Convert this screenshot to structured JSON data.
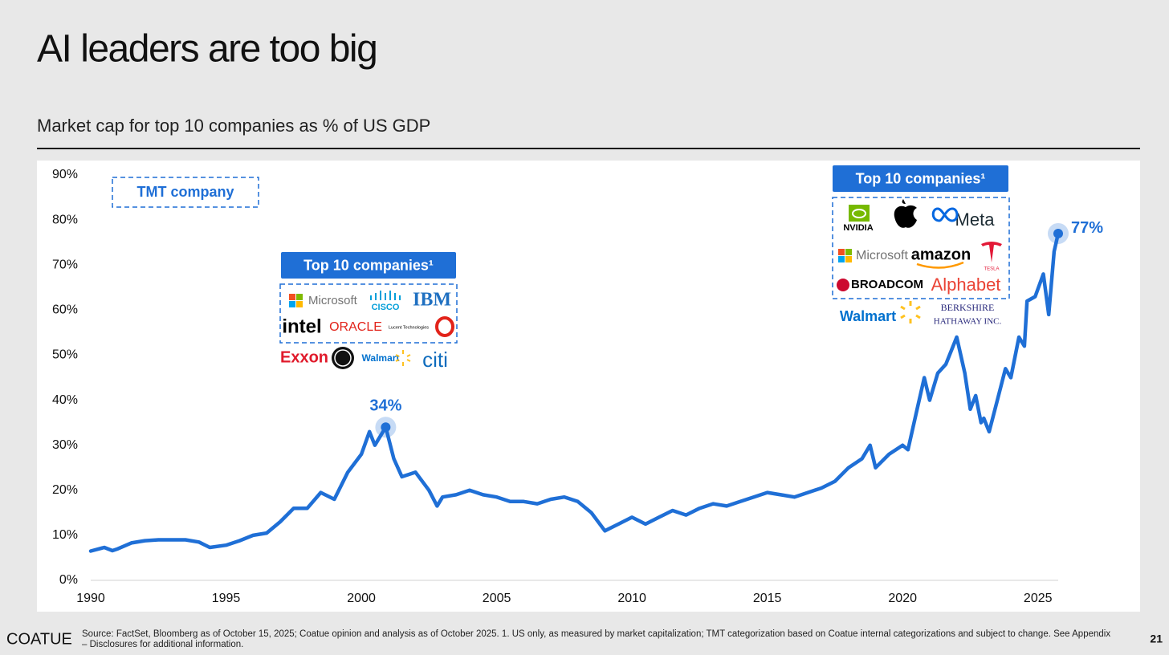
{
  "chart_data": {
    "type": "line",
    "title": "AI leaders are too big",
    "subtitle": "Market cap for top 10 companies as % of US GDP",
    "x": [
      1990.0,
      1990.5,
      1990.8,
      1991.0,
      1991.5,
      1992.0,
      1992.5,
      1993.0,
      1993.5,
      1994.0,
      1994.4,
      1995.0,
      1995.5,
      1996.0,
      1996.5,
      1997.0,
      1997.5,
      1998.0,
      1998.5,
      1999.0,
      1999.5,
      2000.0,
      2000.3,
      2000.5,
      2000.9,
      2001.2,
      2001.5,
      2002.0,
      2002.5,
      2002.8,
      2003.0,
      2003.5,
      2004.0,
      2004.5,
      2005.0,
      2005.5,
      2006.0,
      2006.5,
      2007.0,
      2007.5,
      2008.0,
      2008.5,
      2009.0,
      2009.5,
      2010.0,
      2010.5,
      2011.0,
      2011.5,
      2012.0,
      2012.5,
      2013.0,
      2013.5,
      2014.0,
      2014.5,
      2015.0,
      2015.5,
      2016.0,
      2016.5,
      2017.0,
      2017.5,
      2018.0,
      2018.5,
      2018.8,
      2019.0,
      2019.5,
      2020.0,
      2020.2,
      2020.5,
      2020.8,
      2021.0,
      2021.3,
      2021.6,
      2022.0,
      2022.3,
      2022.5,
      2022.7,
      2022.9,
      2023.0,
      2023.2,
      2023.5,
      2023.8,
      2024.0,
      2024.3,
      2024.5,
      2024.6,
      2024.9,
      2025.2,
      2025.4,
      2025.6,
      2025.75
    ],
    "values": [
      6.5,
      7.3,
      6.6,
      7.0,
      8.3,
      8.8,
      9.0,
      9.0,
      9.0,
      8.5,
      7.3,
      7.8,
      8.8,
      10.0,
      10.5,
      13,
      16,
      16,
      19.5,
      18,
      24,
      28,
      33,
      30,
      34,
      27,
      23,
      24,
      20,
      16.5,
      18.5,
      19,
      20,
      19,
      18.5,
      17.5,
      17.5,
      17,
      18,
      18.5,
      17.5,
      15,
      11,
      12.5,
      14,
      12.5,
      14,
      15.5,
      14.5,
      16,
      17,
      16.5,
      17.5,
      18.5,
      19.5,
      19,
      18.5,
      19.5,
      20.5,
      22,
      25,
      27,
      30,
      25,
      28,
      30,
      29,
      37,
      45,
      40,
      46,
      48,
      54,
      46,
      38,
      41,
      35,
      36,
      33,
      40,
      47,
      45,
      54,
      52,
      62,
      63,
      68,
      59,
      73,
      77
    ],
    "value_labels": [
      null,
      null,
      null,
      null,
      null,
      null,
      null,
      null,
      null,
      null,
      null,
      null,
      null,
      null,
      null,
      null,
      null,
      null,
      null,
      null,
      null,
      null,
      null,
      null,
      "34%",
      null,
      null,
      null,
      null,
      null,
      null,
      null,
      null,
      null,
      null,
      null,
      null,
      null,
      null,
      null,
      null,
      null,
      null,
      null,
      null,
      null,
      null,
      null,
      null,
      null,
      null,
      null,
      null,
      null,
      null,
      null,
      null,
      null,
      null,
      null,
      null,
      null,
      null,
      null,
      null,
      null,
      null,
      null,
      null,
      null,
      null,
      null,
      null,
      null,
      null,
      null,
      null,
      null,
      null,
      null,
      null,
      null,
      null,
      null,
      null,
      null,
      null,
      null,
      null,
      "77%"
    ],
    "color": "#1f6fd6",
    "xlim": [
      1990,
      2025.75
    ],
    "xticks": [
      1990,
      1995,
      2000,
      2005,
      2010,
      2015,
      2020,
      2025
    ],
    "ylim": [
      0,
      90
    ],
    "yticks": [
      {
        "value": 0,
        "label": "0%"
      },
      {
        "value": 10,
        "label": "10%"
      },
      {
        "value": 20,
        "label": "20%"
      },
      {
        "value": 30,
        "label": "30%"
      },
      {
        "value": 40,
        "label": "40%"
      },
      {
        "value": 50,
        "label": "50%"
      },
      {
        "value": 60,
        "label": "60%"
      },
      {
        "value": 70,
        "label": "70%"
      },
      {
        "value": 80,
        "label": "80%"
      },
      {
        "value": 90,
        "label": "90%"
      }
    ],
    "legend": {
      "label": "TMT company",
      "position": "top-left"
    },
    "callouts": [
      {
        "title": "Top 10 companies¹",
        "companies": [
          "Microsoft",
          "CISCO",
          "IBM",
          "intel",
          "ORACLE",
          "Lucent Technologies",
          "Exxon",
          "Walmart",
          "citi"
        ]
      },
      {
        "title": "Top 10 companies¹",
        "companies": [
          "NVIDIA",
          "Meta",
          "Microsoft",
          "amazon",
          "TESLA",
          "BROADCOM",
          "Alphabet",
          "Walmart",
          "BERKSHIRE",
          "HATHAWAY INC."
        ]
      }
    ]
  },
  "footer": {
    "brand": "COATUE",
    "source": "Source: FactSet, Bloomberg as of October 15, 2025; Coatue opinion and analysis as of October 2025. 1. US only, as measured by market capitalization; TMT categorization based on Coatue internal categorizations and subject to change. See Appendix – Disclosures for additional information.",
    "page": "21"
  }
}
